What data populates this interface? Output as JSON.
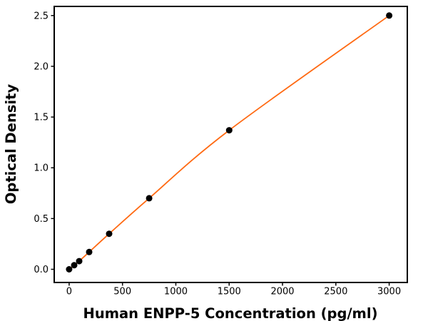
{
  "chart_data": {
    "type": "scatter",
    "title": "",
    "xlabel": "Human ENPP-5 Concentration (pg/ml)",
    "ylabel": "Optical Density",
    "x": [
      0,
      46.9,
      93.8,
      187.5,
      375,
      750,
      1500,
      3000
    ],
    "y": [
      0.0,
      0.04,
      0.08,
      0.17,
      0.35,
      0.7,
      1.37,
      2.5
    ],
    "fit_curve": true,
    "xticks": [
      0,
      500,
      1000,
      1500,
      2000,
      2500,
      3000
    ],
    "xtick_labels": [
      "0",
      "500",
      "1000",
      "1500",
      "2000",
      "2500",
      "3000"
    ],
    "yticks": [
      0.0,
      0.5,
      1.0,
      1.5,
      2.0,
      2.5
    ],
    "ytick_labels": [
      "0.0",
      "0.5",
      "1.0",
      "1.5",
      "2.0",
      "2.5"
    ],
    "xlim": [
      -140,
      3170
    ],
    "ylim": [
      -0.13,
      2.59
    ],
    "grid": false,
    "legend": "none",
    "line_color": "#ff6a13",
    "marker_color": "#000000",
    "axis_color": "#000000",
    "background_color": "#ffffff"
  }
}
